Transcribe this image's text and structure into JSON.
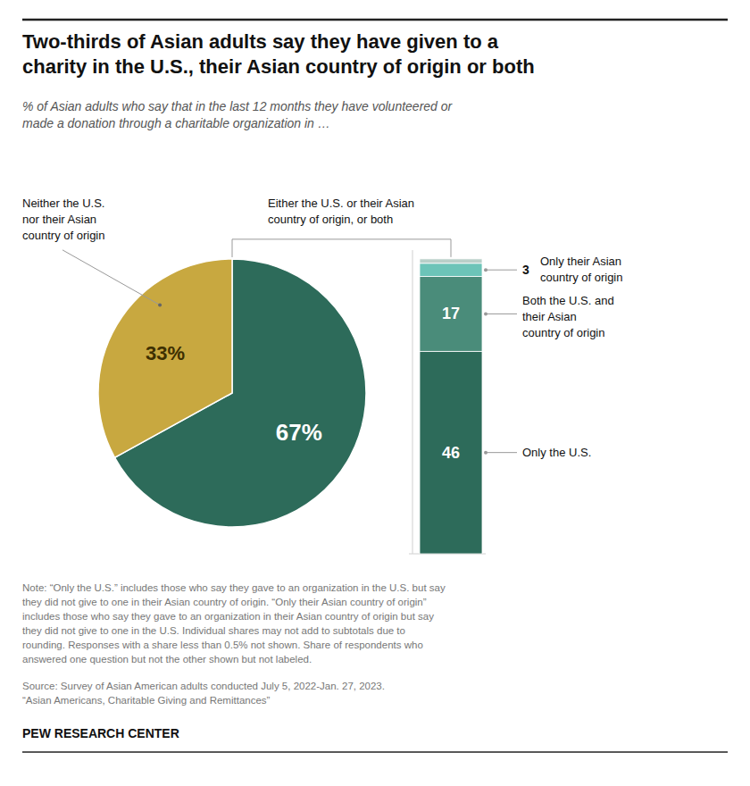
{
  "chart_data": [
    {
      "type": "pie",
      "title": "Two-thirds of Asian adults say they have given to a\ncharity in the U.S., their Asian country of origin or both",
      "subtitle": "% of Asian adults who say that in the last 12 months they have volunteered or\nmade a donation through a charitable organization in …",
      "categories": [
        "Either the U.S. or their Asian country of origin, or both",
        "Neither the U.S. nor their Asian country of origin"
      ],
      "values": [
        67,
        33
      ],
      "value_labels": [
        "67%",
        "33%"
      ],
      "colors": [
        "#2d6b5a",
        "#c8a840"
      ],
      "data_labels": true,
      "note": "Note: “Only the U.S.” includes those who say they gave to an organization in the U.S. but say\nthey did not give to one in their Asian country of origin. “Only their Asian country of origin”\nincludes those who say they gave to an organization in their Asian country of origin but say\nthey did not give to one in the U.S. Individual shares may not add to subtotals due to\nrounding. Responses with a share less than 0.5% not shown. Share of respondents who\nanswered one question but not the other shown but not labeled.",
      "source": "Source: Survey of Asian American adults conducted July 5, 2022-Jan. 27, 2023.\n“Asian Americans, Charitable Giving and Remittances”",
      "credit": "PEW RESEARCH CENTER"
    },
    {
      "type": "bar",
      "stacked": true,
      "categories": [
        null
      ],
      "ylim": [
        0,
        69
      ],
      "tick_labels": false,
      "data_labels": true,
      "series": [
        {
          "name": "Only the U.S.",
          "color": "#2d6b5a",
          "values": [
            46
          ]
        },
        {
          "name": "Both the U.S. and their Asian country of origin",
          "color": "#4a8c7a",
          "values": [
            17
          ]
        },
        {
          "name": "Only their Asian country of origin",
          "color": "#6cc4b8",
          "values": [
            3
          ]
        },
        {
          "color": "#b8cfc8",
          "values": [
            1
          ],
          "value_labels": [
            null
          ]
        }
      ]
    }
  ]
}
